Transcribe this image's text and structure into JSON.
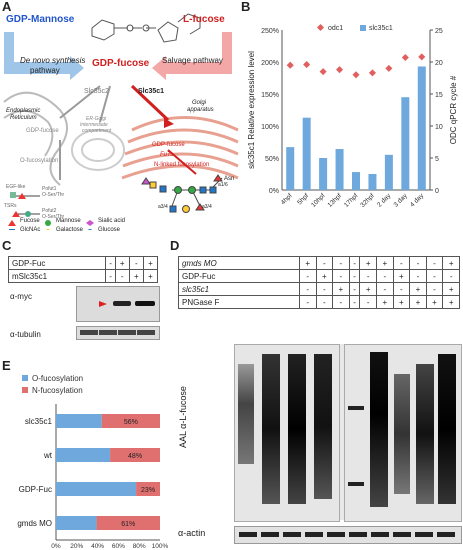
{
  "panels": {
    "A": "A",
    "B": "B",
    "C": "C",
    "D": "D",
    "E": "E"
  },
  "panel_a": {
    "gdp_mannose": "GDP-Mannose",
    "l_fucose": "L-fucose",
    "de_novo_1": "De novo synthesis",
    "de_novo_2": "pathway",
    "salvage": "Salvage pathway",
    "gdp_fucose": "GDP-fucose",
    "er_1": "Endoplasmic",
    "er_2": "Reticulum",
    "slc35c2": "Slc35c2",
    "slc35c1": "Slc35c1",
    "golgi_1": "Golgi",
    "golgi_2": "apparatus",
    "ergic_1": "ER-Golgi",
    "ergic_2": "Intermediate",
    "ergic_3": "compartment",
    "gdp_fucose_er": "GDP-fucose",
    "o_fuc_er": "O-fucosylation",
    "gdp_fucose_golgi": "GDP-fucose",
    "futs": "FuTs",
    "n_fuc": "N-linked fucosylation",
    "pofut1": "Pofut1",
    "o_ser_thr_1": "O-Ser/Thr",
    "egf": "EGF-like",
    "tsrs": "TSRs",
    "pofut2": "Pofut2",
    "o_ser_thr_2": "O-Ser/Thr",
    "a1_6": "a1/6",
    "a3_4": "a3/4",
    "a3_4b": "a3/4",
    "asn": "Asn",
    "legend": [
      "Fucose",
      "GlcNAc",
      "Mannose",
      "Galactose",
      "Sialic acid",
      "Glucose"
    ]
  },
  "chart_b": {
    "type": "bar+scatter",
    "categories": [
      "4hpf",
      "5hpf",
      "10hpf",
      "13hpf",
      "17hpf",
      "32hpf",
      "2 day",
      "3 day",
      "4 day"
    ],
    "series": [
      {
        "name": "slc35c1",
        "kind": "bar",
        "axis": "left",
        "values": [
          67,
          113,
          50,
          64,
          28,
          25,
          55,
          145,
          193
        ],
        "color": "#6fa8dc"
      },
      {
        "name": "odc1",
        "kind": "scatter",
        "axis": "right",
        "values": [
          19.5,
          19.6,
          18.5,
          18.8,
          18,
          18.3,
          19,
          20.7,
          20.8
        ],
        "color": "#e06060"
      }
    ],
    "ylabel_left": "slc35c1 Relative expression level",
    "ylabel_right": "ODC qPCR cycle #",
    "yticks_left": [
      "0%",
      "50%",
      "100%",
      "150%",
      "200%",
      "250%"
    ],
    "yticks_right": [
      "0",
      "5",
      "10",
      "15",
      "20",
      "25"
    ],
    "ylim_left": [
      0,
      250
    ],
    "ylim_right": [
      0,
      25
    ]
  },
  "panel_c": {
    "rows": [
      {
        "label": "GDP-Fuc",
        "cells": [
          "-",
          "+",
          "-",
          "+"
        ]
      },
      {
        "label": "mSlc35c1",
        "cells": [
          "-",
          "-",
          "+",
          "+"
        ]
      }
    ],
    "blot1": "α-myc",
    "blot2": "α-tubulin"
  },
  "panel_d": {
    "rows": [
      {
        "label": "gmds MO",
        "cells": [
          "+",
          "-",
          "-",
          "-",
          "+",
          "+",
          "-",
          "-",
          "-",
          "+"
        ]
      },
      {
        "label": "GDP-Fuc",
        "cells": [
          "-",
          "+",
          "-",
          "-",
          "-",
          "-",
          "+",
          "-",
          "-",
          "-"
        ]
      },
      {
        "label": "slc35c1",
        "cells": [
          "-",
          "-",
          "+",
          "-",
          "+",
          "-",
          "-",
          "+",
          "-",
          "+"
        ]
      },
      {
        "label": "PNGase F",
        "cells": [
          "-",
          "-",
          "-",
          "-",
          "-",
          "+",
          "+",
          "+",
          "+",
          "+"
        ]
      }
    ],
    "blot1": "AAL α-L-fucose",
    "blot2": "α-actin"
  },
  "chart_e": {
    "type": "bar",
    "categories": [
      "slc35c1",
      "wt",
      "GDP-Fuc",
      "gmds MO"
    ],
    "series": [
      {
        "name": "O-fucosylation",
        "values": [
          44,
          52,
          77,
          39
        ],
        "color": "#6fa8dc"
      },
      {
        "name": "N-fucosylation",
        "values": [
          56,
          48,
          23,
          61
        ],
        "color": "#e07070"
      }
    ],
    "labels": [
      "56%",
      "48%",
      "23%",
      "61%"
    ],
    "xticks": [
      "0%",
      "20%",
      "40%",
      "60%",
      "80%",
      "100%"
    ],
    "xlim": [
      0,
      100
    ]
  }
}
